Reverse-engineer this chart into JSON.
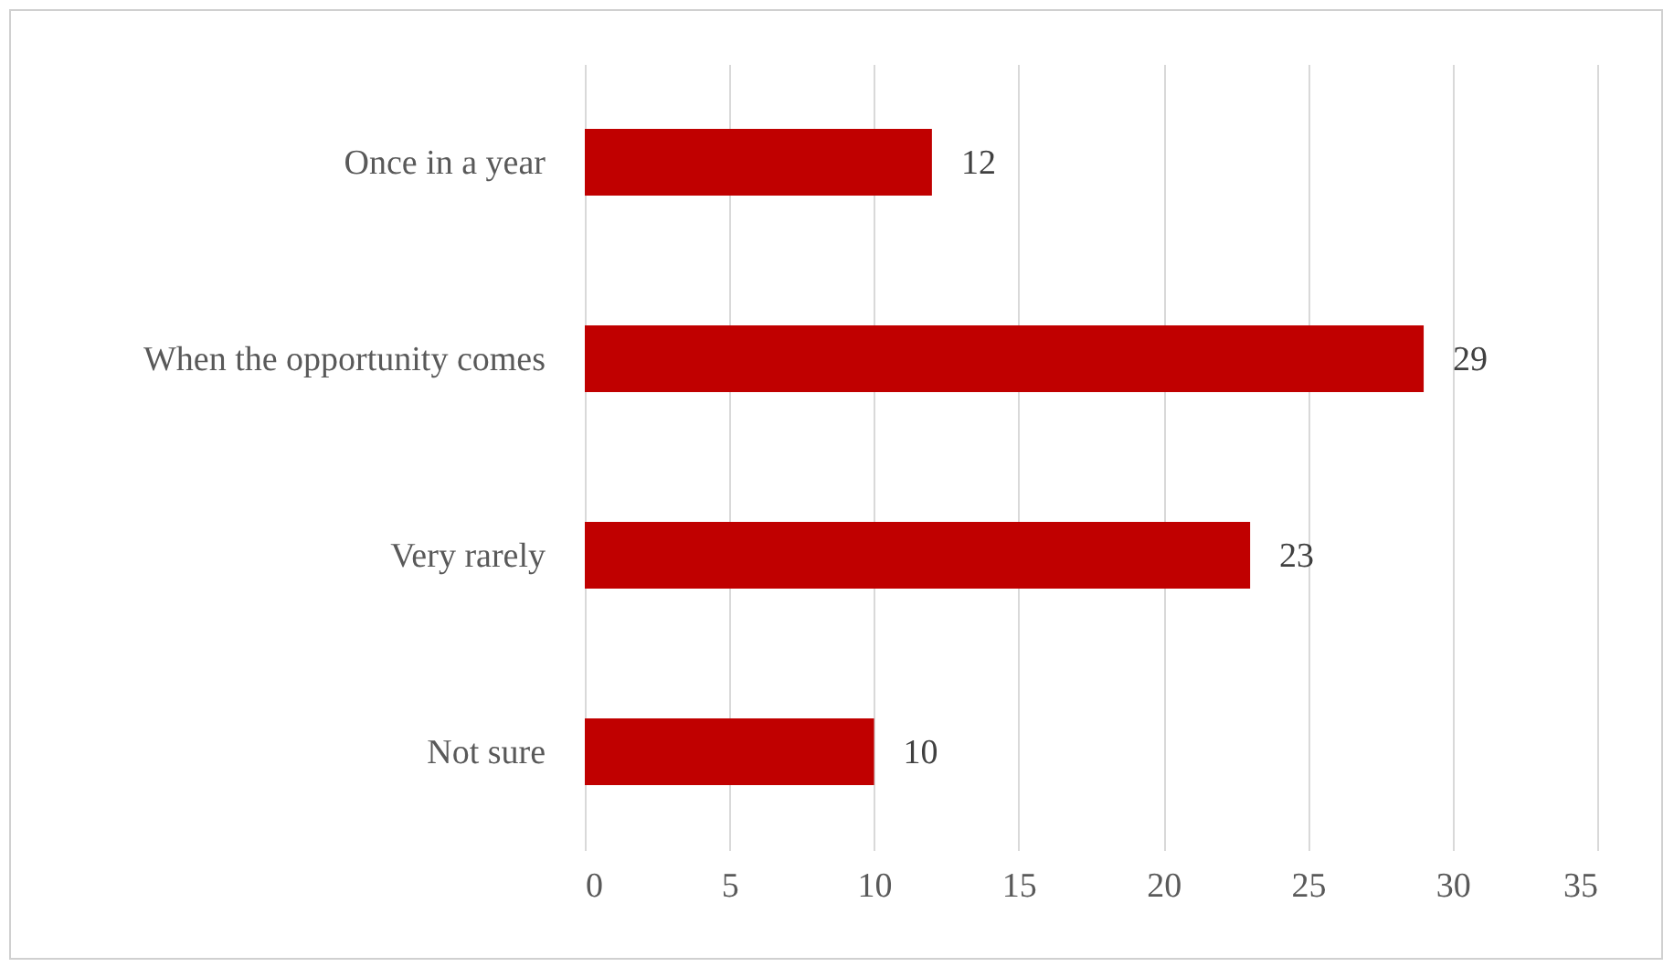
{
  "chart_data": {
    "type": "bar",
    "orientation": "horizontal",
    "categories": [
      "Once in a year",
      "When the opportunity comes",
      "Very rarely",
      "Not sure"
    ],
    "values": [
      12,
      29,
      23,
      10
    ],
    "color": "#c00000",
    "xlim": [
      0,
      35
    ],
    "xticks": [
      0,
      5,
      10,
      15,
      20,
      25,
      30,
      35
    ],
    "grid": "x",
    "data_labels": true
  }
}
